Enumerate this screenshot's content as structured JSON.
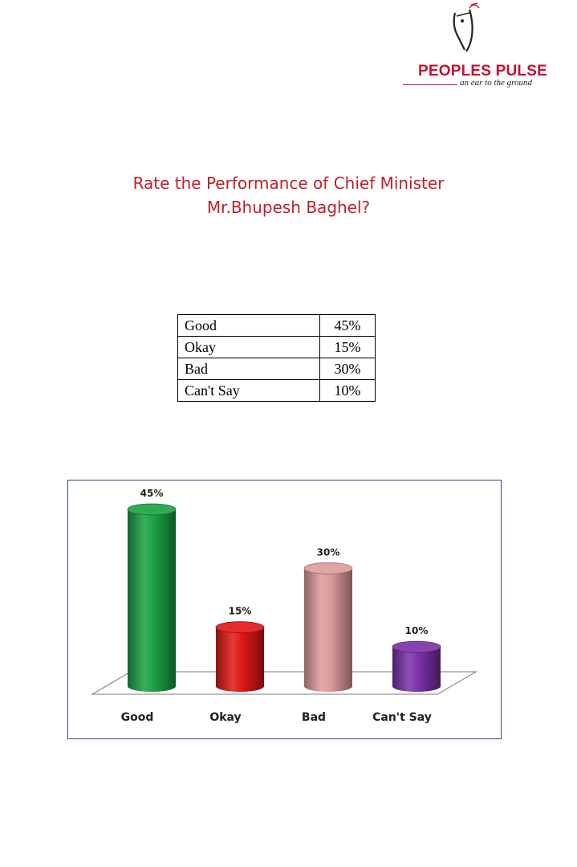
{
  "brand": {
    "name": "PEOPLES PULSE",
    "tagline": "an ear to the ground",
    "logo_icon": "listening-ear-mark-icon"
  },
  "title": {
    "line1": "Rate the Performance of Chief Minister",
    "line2": "Mr.Bhupesh Baghel?"
  },
  "table": {
    "rows": [
      {
        "label": "Good",
        "value": "45%"
      },
      {
        "label": "Okay",
        "value": "15%"
      },
      {
        "label": "Bad",
        "value": "30%"
      },
      {
        "label": "Can't Say",
        "value": "10%"
      }
    ]
  },
  "chart_data": {
    "type": "bar",
    "style": "3d-cylinder",
    "categories": [
      "Good",
      "Okay",
      "Bad",
      "Can't Say"
    ],
    "values": [
      45,
      15,
      30,
      10
    ],
    "data_labels": [
      "45%",
      "15%",
      "30%",
      "10%"
    ],
    "colors": [
      "#1aa042",
      "#e01616",
      "#dd9b9b",
      "#7a2fa6"
    ],
    "grid": false,
    "legend": "none"
  }
}
